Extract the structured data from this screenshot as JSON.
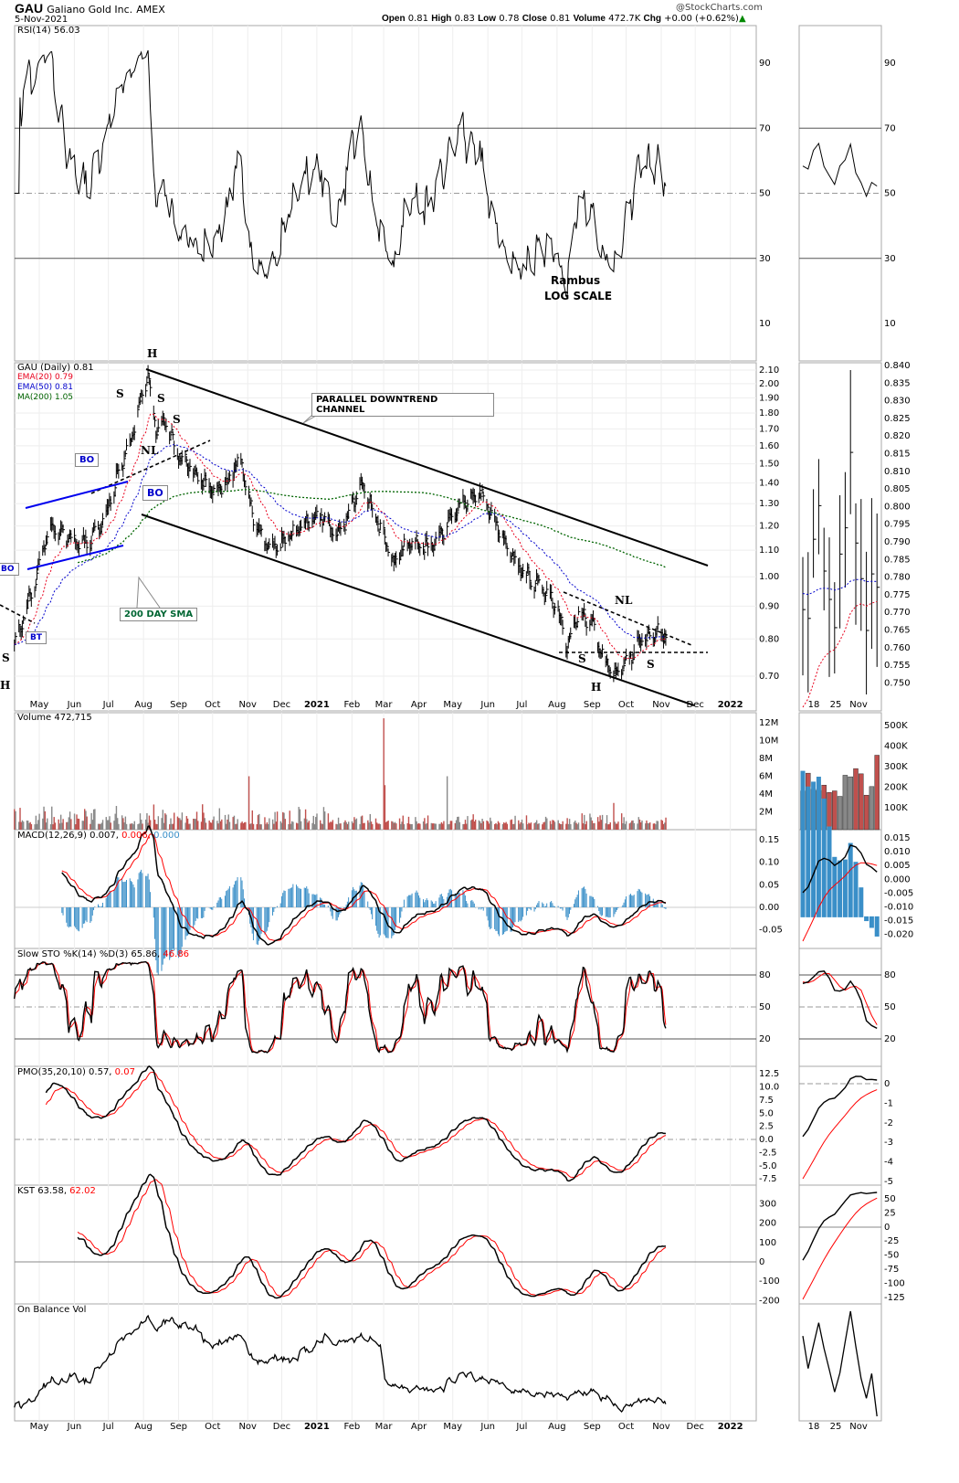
{
  "header": {
    "symbol": "GAU",
    "name": "Galiano Gold Inc.",
    "exchange": "AMEX",
    "date": "5-Nov-2021",
    "brand": "@StockCharts.com",
    "open_label": "Open",
    "open": "0.81",
    "high_label": "High",
    "high": "0.83",
    "low_label": "Low",
    "low": "0.78",
    "close_label": "Close",
    "close": "0.81",
    "volume_label": "Volume",
    "volume": "472.7K",
    "chg_label": "Chg",
    "chg": "+0.00 (+0.62%)"
  },
  "colors": {
    "price": "#000000",
    "ema20": "#e8001c",
    "ema50": "#0000cc",
    "ma200": "#006400",
    "volume_up": "#888888",
    "volume_down": "#c0504d",
    "macd_hist": "#3a8fc8",
    "signal": "#ff0000",
    "rsi_fill": "#4d7a4d"
  },
  "legends": {
    "rsi": "RSI(14) 56.03",
    "price": "GAU (Daily) 0.81",
    "ema20": "EMA(20) 0.79",
    "ema50": "EMA(50) 0.81",
    "ma200": "MA(200) 1.05",
    "volume": "Volume 472,715",
    "macd": "MACD(12,26,9) 0.007,",
    "macd_sig": " 0.006,",
    "macd_hist": " 0.000",
    "sto": "Slow STO %K(14) %D(3) 65.86,",
    "sto_d": " 46.86",
    "pmo": "PMO(35,20,10) 0.57,",
    "pmo_sig": " 0.07",
    "kst": "KST 63.58,",
    "kst_sig": " 62.02",
    "obv": "On Balance Vol"
  },
  "annotations": {
    "h1": "H",
    "s1": "S",
    "s2": "S",
    "s3": "S",
    "nl1": "NL",
    "bo1": "BO",
    "bo2": "BO",
    "bo3": "BO",
    "bt": "BT",
    "s_left": "S",
    "h_left": "H",
    "channel": "PARALLEL DOWNTREND CHANNEL",
    "sma": "200 DAY SMA",
    "nl2": "NL",
    "s4": "S",
    "h2": "H",
    "s5": "S",
    "rambus": "Rambus",
    "log": "LOG SCALE"
  },
  "axes": {
    "months": [
      [
        "2020-05-01",
        "May"
      ],
      [
        "2020-06-01",
        "Jun"
      ],
      [
        "2020-07-01",
        "Jul"
      ],
      [
        "2020-08-01",
        "Aug"
      ],
      [
        "2020-09-01",
        "Sep"
      ],
      [
        "2020-10-01",
        "Oct"
      ],
      [
        "2020-11-01",
        "Nov"
      ],
      [
        "2020-12-01",
        "Dec"
      ],
      [
        "2021-01-01",
        "2021"
      ],
      [
        "2021-02-01",
        "Feb"
      ],
      [
        "2021-03-01",
        "Mar"
      ],
      [
        "2021-04-01",
        "Apr"
      ],
      [
        "2021-05-01",
        "May"
      ],
      [
        "2021-06-01",
        "Jun"
      ],
      [
        "2021-07-01",
        "Jul"
      ],
      [
        "2021-08-01",
        "Aug"
      ],
      [
        "2021-09-01",
        "Sep"
      ],
      [
        "2021-10-01",
        "Oct"
      ],
      [
        "2021-11-01",
        "Nov"
      ],
      [
        "2021-12-01",
        "Dec"
      ],
      [
        "2022-01-01",
        "2022"
      ]
    ],
    "right_dates": [
      "18",
      "25",
      "Nov"
    ],
    "rsi_ticks": [
      90,
      70,
      50,
      30,
      10
    ],
    "price_ticks": [
      "2.10",
      "2.00",
      "1.90",
      "1.80",
      "1.70",
      "1.60",
      "1.50",
      "1.40",
      "1.30",
      "1.20",
      "1.10",
      "1.00",
      "0.90",
      "0.80",
      "0.70"
    ],
    "price_ticks_right": [
      "0.840",
      "0.835",
      "0.830",
      "0.825",
      "0.820",
      "0.815",
      "0.810",
      "0.805",
      "0.800",
      "0.795",
      "0.790",
      "0.785",
      "0.780",
      "0.775",
      "0.770",
      "0.765",
      "0.760",
      "0.755",
      "0.750"
    ],
    "volume_ticks": [
      "12M",
      "10M",
      "8M",
      "6M",
      "4M",
      "2M"
    ],
    "volume_ticks_right": [
      "500K",
      "400K",
      "300K",
      "200K",
      "100K"
    ],
    "macd_ticks": [
      "0.15",
      "0.10",
      "0.05",
      "0.00",
      "-0.05"
    ],
    "macd_ticks_right": [
      "0.015",
      "0.010",
      "0.005",
      "0.000",
      "-0.005",
      "-0.010",
      "-0.015",
      "-0.020"
    ],
    "sto_ticks": [
      80,
      50,
      20
    ],
    "pmo_ticks": [
      "12.5",
      "10.0",
      "7.5",
      "5.0",
      "2.5",
      "0.0",
      "-2.5",
      "-5.0",
      "-7.5"
    ],
    "pmo_ticks_right": [
      "0",
      "-1",
      "-2",
      "-3",
      "-4",
      "-5"
    ],
    "kst_ticks": [
      "300",
      "200",
      "100",
      "0",
      "-100",
      "-200"
    ],
    "kst_ticks_right": [
      "50",
      "25",
      "0",
      "-25",
      "-50",
      "-75",
      "-100",
      "-125"
    ]
  },
  "chart_data": {
    "type": "line",
    "title": "GAU Galiano Gold Inc. AMEX",
    "scale": "log",
    "ylim": [
      0.68,
      2.15
    ],
    "grid": true,
    "price_anchors": [
      [
        "2020-04-09",
        0.78
      ],
      [
        "2020-04-25",
        0.95
      ],
      [
        "2020-05-10",
        1.2
      ],
      [
        "2020-05-25",
        1.15
      ],
      [
        "2020-06-10",
        1.12
      ],
      [
        "2020-06-25",
        1.2
      ],
      [
        "2020-07-10",
        1.45
      ],
      [
        "2020-07-20",
        1.6
      ],
      [
        "2020-07-28",
        1.85
      ],
      [
        "2020-08-05",
        2.05
      ],
      [
        "2020-08-12",
        1.7
      ],
      [
        "2020-08-20",
        1.75
      ],
      [
        "2020-09-01",
        1.55
      ],
      [
        "2020-09-15",
        1.45
      ],
      [
        "2020-10-01",
        1.35
      ],
      [
        "2020-10-15",
        1.4
      ],
      [
        "2020-10-25",
        1.55
      ],
      [
        "2020-11-05",
        1.25
      ],
      [
        "2020-11-20",
        1.1
      ],
      [
        "2020-12-05",
        1.15
      ],
      [
        "2020-12-20",
        1.2
      ],
      [
        "2021-01-05",
        1.25
      ],
      [
        "2021-01-20",
        1.15
      ],
      [
        "2021-02-01",
        1.3
      ],
      [
        "2021-02-10",
        1.4
      ],
      [
        "2021-02-25",
        1.2
      ],
      [
        "2021-03-10",
        1.05
      ],
      [
        "2021-03-25",
        1.15
      ],
      [
        "2021-04-10",
        1.1
      ],
      [
        "2021-04-25",
        1.2
      ],
      [
        "2021-05-10",
        1.3
      ],
      [
        "2021-05-25",
        1.35
      ],
      [
        "2021-06-05",
        1.25
      ],
      [
        "2021-06-20",
        1.1
      ],
      [
        "2021-07-05",
        1.0
      ],
      [
        "2021-07-20",
        0.95
      ],
      [
        "2021-08-01",
        0.9
      ],
      [
        "2021-08-10",
        0.78
      ],
      [
        "2021-08-20",
        0.88
      ],
      [
        "2021-09-01",
        0.85
      ],
      [
        "2021-09-10",
        0.75
      ],
      [
        "2021-09-20",
        0.7
      ],
      [
        "2021-10-01",
        0.73
      ],
      [
        "2021-10-15",
        0.8
      ],
      [
        "2021-10-25",
        0.82
      ],
      [
        "2021-11-05",
        0.81
      ]
    ],
    "volume_spikes": [
      [
        "2020-11-02",
        6.0
      ],
      [
        "2021-03-01",
        12.5
      ],
      [
        "2021-03-02",
        5.0
      ],
      [
        "2021-04-26",
        6.0
      ],
      [
        "2021-09-20",
        3.0
      ]
    ],
    "series": [
      {
        "name": "EMA(20)"
      },
      {
        "name": "EMA(50)"
      },
      {
        "name": "MA(200)"
      }
    ]
  }
}
